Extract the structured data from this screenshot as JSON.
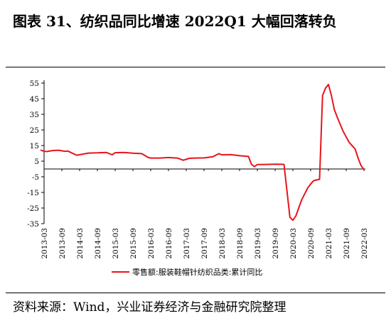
{
  "header": {
    "title": "图表 31、纺织品同比增速 2022Q1 大幅回落转负"
  },
  "footer": {
    "source": "资料来源：Wind，兴业证券经济与金融研究院整理"
  },
  "colors": {
    "series": "#e8141c",
    "axis": "#000000"
  },
  "chart_data": {
    "type": "line",
    "title": "图表 31、纺织品同比增速 2022Q1 大幅回落转负",
    "xlabel": "",
    "ylabel": "",
    "ylim": [
      -35,
      55
    ],
    "yticks": [
      55,
      45,
      35,
      25,
      15,
      5,
      -5,
      -15,
      -25,
      -35
    ],
    "grid": false,
    "legend": "bottom",
    "xticks": [
      "2013-03",
      "2013-09",
      "2014-03",
      "2014-09",
      "2015-03",
      "2015-09",
      "2016-03",
      "2016-09",
      "2017-03",
      "2017-09",
      "2018-03",
      "2018-09",
      "2019-03",
      "2019-09",
      "2020-03",
      "2020-09",
      "2021-03",
      "2021-09",
      "2022-03"
    ],
    "series": [
      {
        "name": "零售额:服装鞋帽针纺织品类:累计同比",
        "x": [
          "2013-02",
          "2013-03",
          "2013-04",
          "2013-06",
          "2013-08",
          "2013-10",
          "2013-11",
          "2013-12",
          "2014-02",
          "2014-04",
          "2014-06",
          "2014-09",
          "2014-12",
          "2015-02",
          "2015-03",
          "2015-06",
          "2015-09",
          "2015-12",
          "2016-02",
          "2016-03",
          "2016-06",
          "2016-09",
          "2016-12",
          "2017-02",
          "2017-04",
          "2017-06",
          "2017-09",
          "2017-12",
          "2018-02",
          "2018-03",
          "2018-06",
          "2018-09",
          "2018-12",
          "2019-01",
          "2019-02",
          "2019-03",
          "2019-06",
          "2019-09",
          "2019-11",
          "2019-12",
          "2020-02",
          "2020-03",
          "2020-04",
          "2020-06",
          "2020-08",
          "2020-09",
          "2020-10",
          "2020-11",
          "2020-12",
          "2021-01",
          "2021-02",
          "2021-03",
          "2021-04",
          "2021-05",
          "2021-06",
          "2021-08",
          "2021-10",
          "2021-12",
          "2022-01",
          "2022-02",
          "2022-03"
        ],
        "values": [
          12.0,
          11.3,
          11.2,
          11.8,
          12.0,
          11.3,
          11.5,
          10.6,
          8.8,
          9.5,
          10.2,
          10.3,
          10.6,
          9.1,
          10.4,
          10.6,
          10.1,
          9.8,
          7.5,
          7.0,
          7.0,
          7.3,
          7.0,
          5.6,
          6.8,
          7.0,
          7.1,
          7.8,
          9.8,
          9.1,
          9.2,
          8.5,
          8.0,
          3.0,
          1.5,
          2.8,
          2.9,
          3.1,
          3.0,
          2.9,
          -30.9,
          -32.8,
          -30.0,
          -19.6,
          -12.2,
          -9.6,
          -7.5,
          -7.0,
          -6.6,
          47.0,
          51.7,
          54.1,
          47.0,
          38.0,
          33.0,
          24.0,
          17.0,
          12.8,
          7.0,
          2.2,
          -0.3
        ]
      }
    ]
  }
}
